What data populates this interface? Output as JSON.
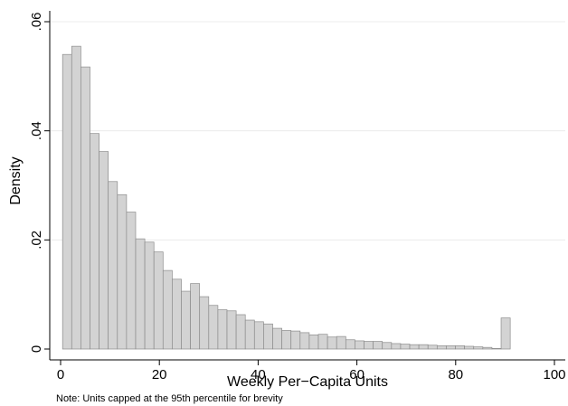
{
  "chart_data": {
    "type": "bar",
    "title": "",
    "xlabel": "Weekly Per−Capita Units",
    "ylabel": "Density",
    "note": "Note: Units capped at the 95th percentile for brevity",
    "xlim": [
      0,
      100
    ],
    "ylim": [
      0,
      0.06
    ],
    "xticks": [
      0,
      20,
      40,
      60,
      80,
      100
    ],
    "xtick_labels": [
      "0",
      "20",
      "40",
      "60",
      "80",
      "100"
    ],
    "yticks": [
      0,
      0.02,
      0.04,
      0.06
    ],
    "ytick_labels": [
      "0",
      ".02",
      ".04",
      ".06"
    ],
    "grid": true,
    "legend": "none",
    "bar_color": "#d3d3d3",
    "bar_edge_color": "#8c8c8c",
    "bin_width": 1.85,
    "bin_starts": [
      0.4,
      2.25,
      4.1,
      5.95,
      7.8,
      9.65,
      11.5,
      13.35,
      15.2,
      17.05,
      18.9,
      20.75,
      22.6,
      24.45,
      26.3,
      28.15,
      30.0,
      31.85,
      33.7,
      35.55,
      37.4,
      39.25,
      41.1,
      42.95,
      44.8,
      46.65,
      48.5,
      50.35,
      52.2,
      54.05,
      55.9,
      57.75,
      59.6,
      61.45,
      63.3,
      65.15,
      67.0,
      68.85,
      70.7,
      72.55,
      74.4,
      76.25,
      78.1,
      79.95,
      81.8,
      83.65,
      85.5,
      87.35,
      89.2
    ],
    "values": [
      0.054,
      0.0555,
      0.0517,
      0.0395,
      0.0362,
      0.0307,
      0.0283,
      0.0251,
      0.0202,
      0.0196,
      0.0178,
      0.0144,
      0.0128,
      0.0106,
      0.012,
      0.0096,
      0.008,
      0.0072,
      0.007,
      0.0063,
      0.0053,
      0.005,
      0.0046,
      0.0038,
      0.0034,
      0.0033,
      0.003,
      0.0026,
      0.0027,
      0.0022,
      0.0023,
      0.0017,
      0.0015,
      0.0014,
      0.0014,
      0.0012,
      0.001,
      0.0009,
      0.0008,
      0.0008,
      0.0007,
      0.0006,
      0.0006,
      0.0006,
      0.0005,
      0.0004,
      0.0003,
      0.0001,
      0.0057
    ]
  }
}
